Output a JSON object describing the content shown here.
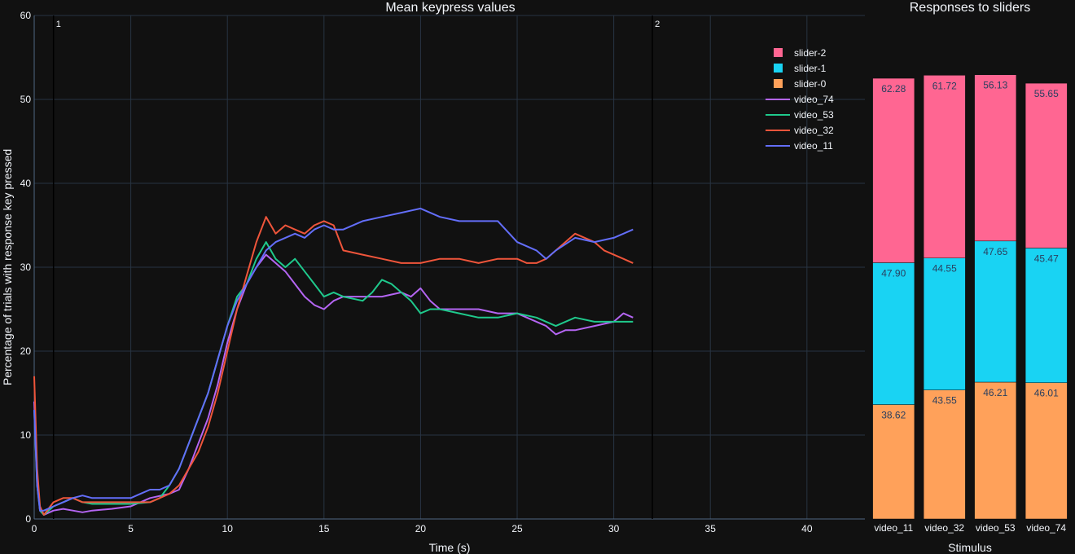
{
  "chart_data": [
    {
      "type": "line",
      "title": "Mean keypress values",
      "xlabel": "Time (s)",
      "ylabel": "Percentage of trials with response key pressed",
      "xlim": [
        0,
        43
      ],
      "ylim": [
        0,
        60
      ],
      "x_ticks": [
        0,
        5,
        10,
        15,
        20,
        25,
        30,
        35,
        40
      ],
      "y_ticks": [
        0,
        10,
        20,
        30,
        40,
        50,
        60
      ],
      "grid": true,
      "vlines": [
        {
          "x": 1,
          "label": "1"
        },
        {
          "x": 32,
          "label": "2"
        }
      ],
      "series": [
        {
          "name": "video_74",
          "color": "#b465f2",
          "x": [
            0,
            0.15,
            0.3,
            0.5,
            1,
            1.5,
            2,
            2.5,
            3,
            4,
            5,
            6,
            7,
            7.5,
            8,
            8.5,
            9,
            9.5,
            10,
            10.5,
            11,
            11.5,
            12,
            12.5,
            13,
            13.5,
            14,
            14.5,
            15,
            15.5,
            16,
            17,
            18,
            19,
            19.5,
            20,
            20.5,
            21,
            22,
            23,
            24,
            25,
            26,
            26.5,
            27,
            27.5,
            28,
            29,
            30,
            30.5,
            31
          ],
          "values": [
            14,
            5,
            1,
            0.5,
            1,
            1.2,
            1,
            0.8,
            1,
            1.2,
            1.5,
            2.5,
            3,
            3.5,
            6,
            9,
            12,
            16,
            21,
            25,
            28,
            30,
            31.5,
            30.5,
            29.5,
            28,
            26.5,
            25.5,
            25,
            26,
            26.5,
            26.5,
            26.5,
            27,
            26.5,
            27.5,
            26,
            25,
            25,
            25,
            24.5,
            24.5,
            23.5,
            23,
            22,
            22.5,
            22.5,
            23,
            23.5,
            24.5,
            24
          ]
        },
        {
          "name": "video_53",
          "color": "#1fc98c",
          "x": [
            0,
            0.15,
            0.3,
            0.5,
            1,
            1.5,
            2,
            2.5,
            3,
            4,
            5,
            6,
            6.5,
            7,
            7.5,
            8,
            8.5,
            9,
            9.5,
            10,
            10.5,
            11,
            11.5,
            12,
            12.5,
            13,
            13.5,
            14,
            14.5,
            15,
            15.5,
            16,
            17,
            17.5,
            18,
            18.5,
            19,
            19.5,
            20,
            20.5,
            21,
            22,
            23,
            24,
            25,
            26,
            26.5,
            27,
            28,
            29,
            30,
            31
          ],
          "values": [
            13,
            4,
            1,
            0.5,
            1.5,
            2,
            2.5,
            2,
            1.8,
            1.8,
            1.8,
            2,
            2.5,
            4,
            6,
            9,
            12,
            15,
            19,
            23,
            26.5,
            28,
            31,
            33,
            31,
            30,
            31,
            29.5,
            28,
            26.5,
            27,
            26.5,
            26,
            27,
            28.5,
            28,
            27,
            26,
            24.5,
            25,
            25,
            24.5,
            24,
            24,
            24.5,
            24,
            23.5,
            23,
            24,
            23.5,
            23.5,
            23.5
          ]
        },
        {
          "name": "video_32",
          "color": "#ef553b",
          "x": [
            0,
            0.15,
            0.3,
            0.5,
            1,
            1.5,
            2,
            2.5,
            3,
            4,
            5,
            6,
            6.5,
            7,
            7.5,
            8,
            8.5,
            9,
            9.5,
            10,
            10.5,
            11,
            11.5,
            12,
            12.5,
            13,
            13.5,
            14,
            14.5,
            15,
            15.5,
            16,
            17,
            18,
            19,
            20,
            21,
            22,
            23,
            24,
            25,
            25.5,
            26,
            26.5,
            27,
            27.5,
            28,
            28.5,
            29,
            29.5,
            30,
            30.5,
            31
          ],
          "values": [
            17,
            6,
            1.5,
            0.5,
            2,
            2.5,
            2.5,
            2,
            2,
            2,
            2,
            2,
            2.5,
            3,
            4,
            6,
            8,
            11,
            15,
            20,
            25,
            29,
            33,
            36,
            34,
            35,
            34.5,
            34,
            35,
            35.5,
            35,
            32,
            31.5,
            31,
            30.5,
            30.5,
            31,
            31,
            30.5,
            31,
            31,
            30.5,
            30.5,
            31,
            32,
            33,
            34,
            33.5,
            33,
            32,
            31.5,
            31,
            30.5
          ]
        },
        {
          "name": "video_11",
          "color": "#636efa",
          "x": [
            0,
            0.15,
            0.3,
            0.5,
            1,
            1.5,
            2,
            2.5,
            3,
            4,
            5,
            5.5,
            6,
            6.5,
            7,
            7.5,
            8,
            8.5,
            9,
            9.5,
            10,
            10.5,
            11,
            11.5,
            12,
            12.5,
            13,
            13.5,
            14,
            14.5,
            15,
            15.5,
            16,
            17,
            18,
            19,
            20,
            21,
            22,
            23,
            24,
            25,
            26,
            26.5,
            27,
            28,
            29,
            30,
            30.5,
            31
          ],
          "values": [
            13,
            4,
            1,
            1,
            1.5,
            2,
            2.5,
            2.8,
            2.5,
            2.5,
            2.5,
            3,
            3.5,
            3.5,
            4,
            6,
            9,
            12,
            15,
            19,
            23,
            26,
            28,
            30,
            32,
            33,
            33.5,
            34,
            33.5,
            34.5,
            35,
            34.5,
            34.5,
            35.5,
            36,
            36.5,
            37,
            36,
            35.5,
            35.5,
            35.5,
            33,
            32,
            31,
            32,
            33.5,
            33,
            33.5,
            34,
            34.5
          ]
        }
      ]
    },
    {
      "type": "bar",
      "stacked": true,
      "title": "Responses to sliders",
      "xlabel": "Stimulus",
      "categories": [
        "video_11",
        "video_32",
        "video_53",
        "video_74"
      ],
      "series": [
        {
          "name": "slider-0",
          "color": "#ffa15a",
          "values": [
            38.62,
            43.55,
            46.21,
            46.01
          ],
          "labels": [
            "38.62",
            "43.55",
            "46.21",
            "46.01"
          ]
        },
        {
          "name": "slider-1",
          "color": "#19d3f3",
          "values": [
            47.9,
            44.55,
            47.65,
            45.47
          ],
          "labels": [
            "47.90",
            "44.55",
            "47.65",
            "45.47"
          ]
        },
        {
          "name": "slider-2",
          "color": "#ff6692",
          "values": [
            62.28,
            61.72,
            56.13,
            55.65
          ],
          "labels": [
            "62.28",
            "61.72",
            "56.13",
            "55.65"
          ]
        }
      ]
    }
  ],
  "legend": {
    "placement": "top-right of line chart",
    "items": [
      {
        "name": "slider-2",
        "kind": "bar",
        "color": "#ff6692"
      },
      {
        "name": "slider-1",
        "kind": "bar",
        "color": "#19d3f3"
      },
      {
        "name": "slider-0",
        "kind": "bar",
        "color": "#ffa15a"
      },
      {
        "name": "video_74",
        "kind": "line",
        "color": "#b465f2"
      },
      {
        "name": "video_53",
        "kind": "line",
        "color": "#1fc98c"
      },
      {
        "name": "video_32",
        "kind": "line",
        "color": "#ef553b"
      },
      {
        "name": "video_11",
        "kind": "line",
        "color": "#636efa"
      }
    ]
  },
  "colors": {
    "background": "#111111",
    "grid": "#283442",
    "text": "#f2f5fa",
    "vline": "#000000"
  }
}
